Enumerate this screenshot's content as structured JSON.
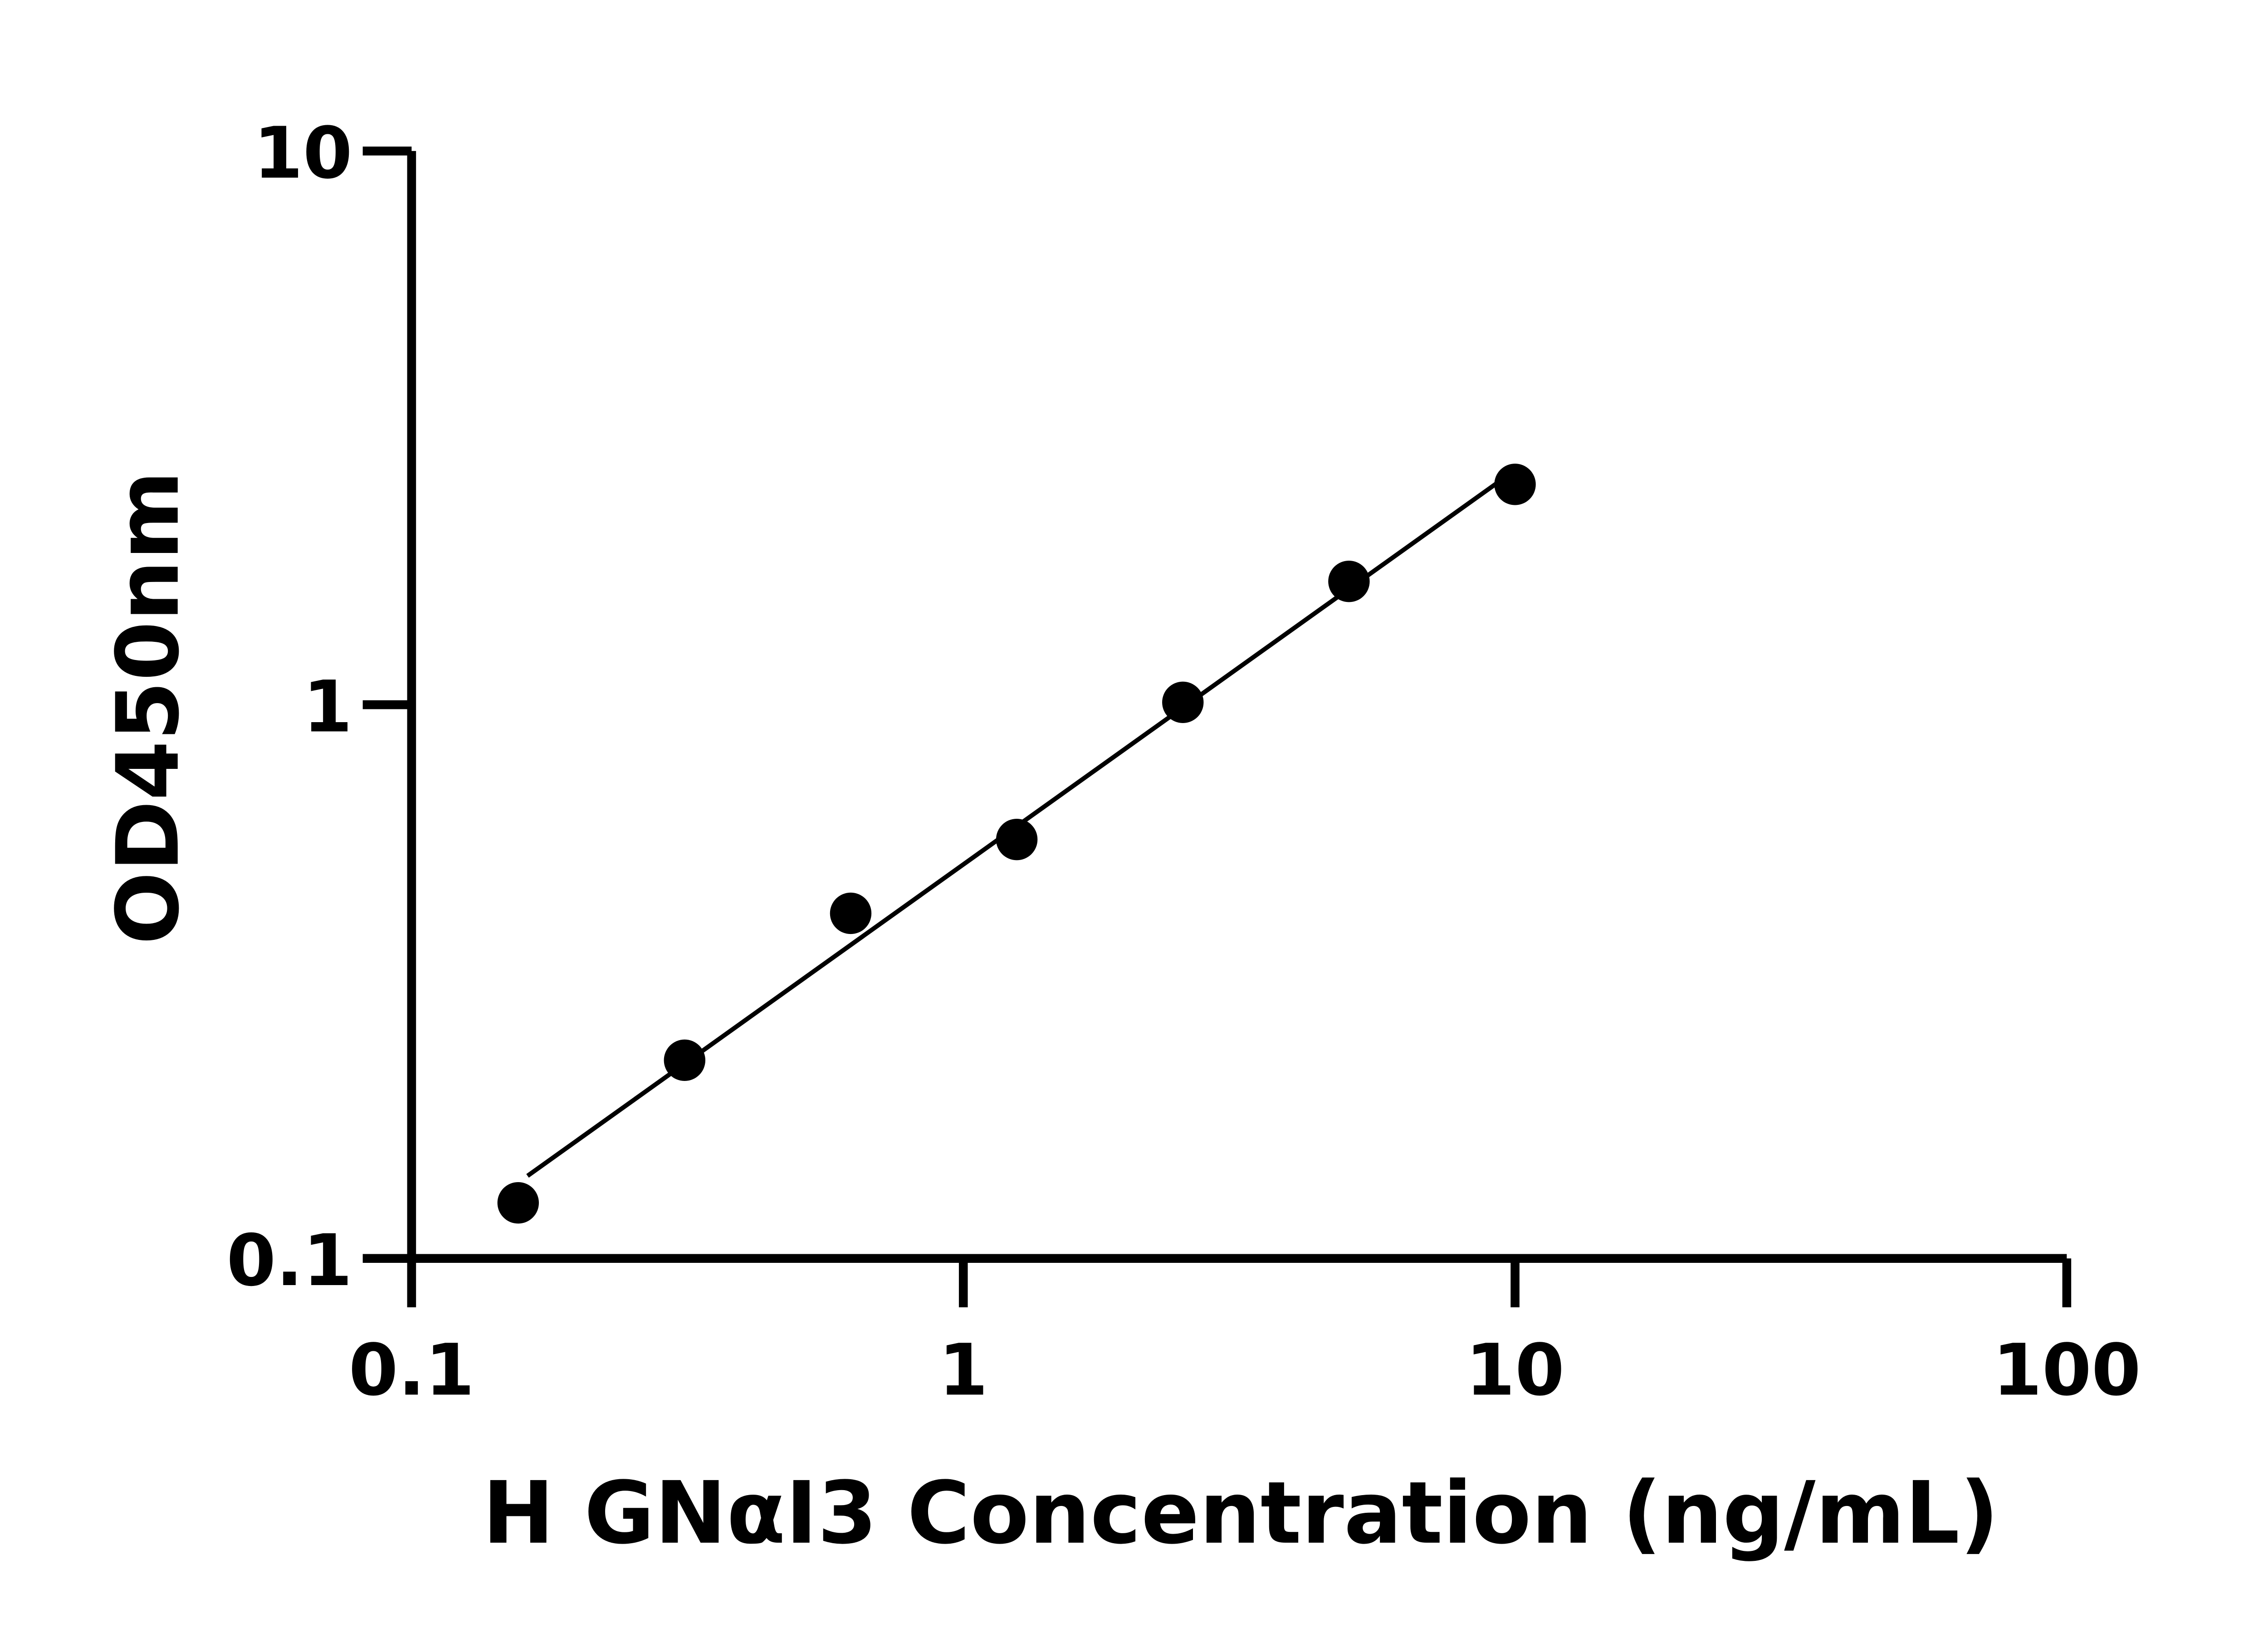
{
  "chart_data": {
    "type": "scatter",
    "title": "",
    "xlabel": "H GNαI3 Concentration (ng/mL)",
    "ylabel": "OD450nm",
    "x_scale": "log",
    "y_scale": "log",
    "xlim": [
      0.1,
      100
    ],
    "ylim": [
      0.1,
      10
    ],
    "x_ticks": [
      "0.1",
      "1",
      "10",
      "100"
    ],
    "y_ticks": [
      "0.1",
      "1",
      "10"
    ],
    "grid": false,
    "fit_line": "linear fit in log-log space",
    "points": [
      {
        "x": 0.156,
        "y": 0.126
      },
      {
        "x": 0.3125,
        "y": 0.228
      },
      {
        "x": 0.625,
        "y": 0.42
      },
      {
        "x": 1.25,
        "y": 0.571
      },
      {
        "x": 2.5,
        "y": 1.01
      },
      {
        "x": 5,
        "y": 1.67
      },
      {
        "x": 10,
        "y": 2.5
      }
    ],
    "colors": {
      "marker": "#000000",
      "line": "#000000"
    }
  }
}
